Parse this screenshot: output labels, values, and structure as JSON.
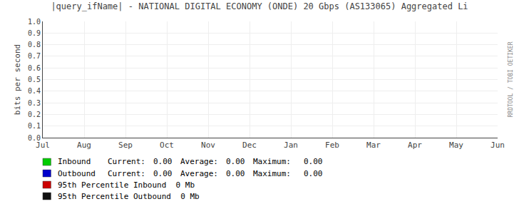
{
  "chart_data": {
    "type": "line",
    "title": "|query_ifName| - NATIONAL DIGITAL ECONOMY (ONDE) 20 Gbps (AS133065) Aggregated Li",
    "ylabel": "bits per second",
    "categories": [
      "Jul",
      "Aug",
      "Sep",
      "Oct",
      "Nov",
      "Dec",
      "Jan",
      "Feb",
      "Mar",
      "Apr",
      "May",
      "Jun"
    ],
    "ylim": [
      0.0,
      1.0
    ],
    "yticks": [
      {
        "value": 0.0,
        "label": "0.0"
      },
      0.1,
      0.2,
      0.3,
      0.4,
      0.5,
      0.6,
      0.7,
      0.8,
      0.9,
      {
        "value": 1.0,
        "label": "1.0"
      }
    ],
    "grid": true,
    "stat_labels": [
      "Current:",
      "Average:",
      "Maximum:"
    ],
    "series": [
      {
        "name": "Inbound",
        "color": "#00cc00",
        "values": [
          null,
          null,
          null,
          null,
          null,
          null,
          null,
          null,
          null,
          null,
          null,
          null
        ],
        "stats": [
          {
            "value": 0,
            "label": "0.00"
          },
          {
            "value": 0,
            "label": "0.00"
          },
          {
            "value": 0,
            "label": "0.00"
          }
        ]
      },
      {
        "name": "Outbound",
        "color": "#0000cc",
        "values": [
          null,
          null,
          null,
          null,
          null,
          null,
          null,
          null,
          null,
          null,
          null,
          null
        ],
        "stats": [
          {
            "value": 0,
            "label": "0.00"
          },
          {
            "value": 0,
            "label": "0.00"
          },
          {
            "value": 0,
            "label": "0.00"
          }
        ]
      }
    ],
    "percentiles": [
      {
        "name": "95th Percentile Inbound",
        "color": "#cc0000",
        "value": 0,
        "value_label": "0 Mb"
      },
      {
        "name": "95th Percentile Outbound",
        "color": "#111111",
        "value": 0,
        "value_label": "0 Mb"
      }
    ],
    "annotations": [
      "RRDTOOL / TOBI OETIKER"
    ]
  }
}
